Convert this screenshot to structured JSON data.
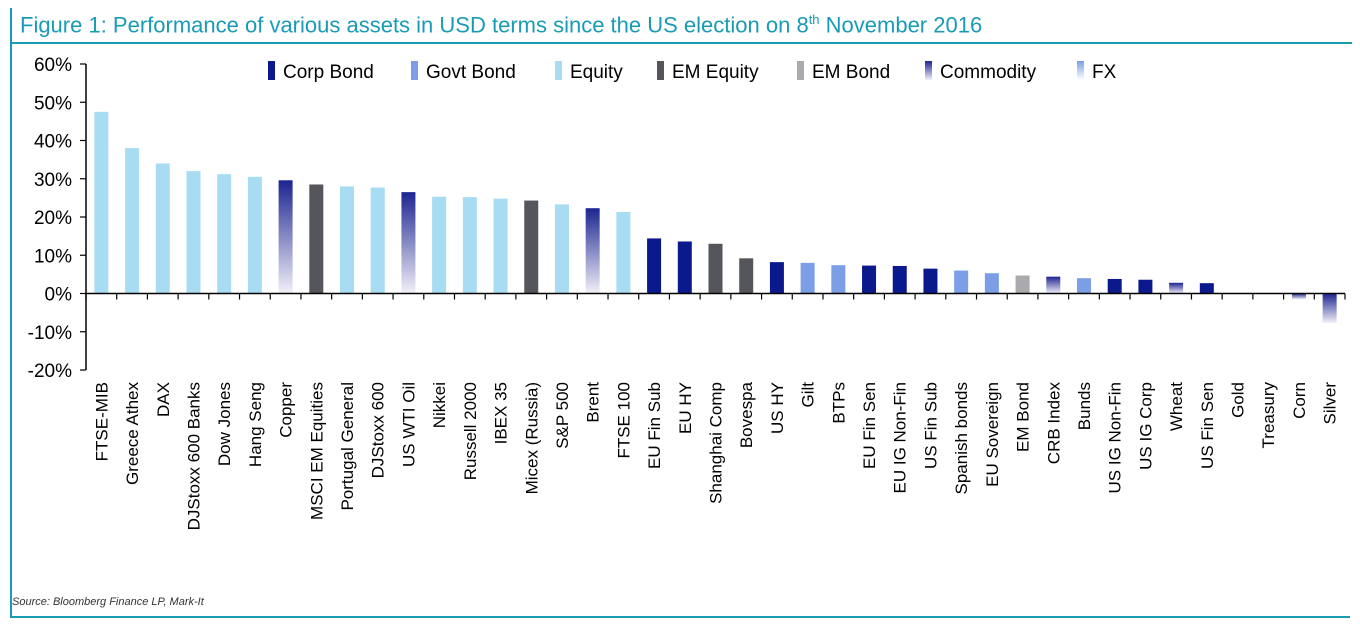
{
  "title": {
    "prefix": "Figure 1: Performance of various assets in USD terms since the US election on 8",
    "superscript": "th",
    "suffix": " November 2016"
  },
  "source": "Source: Bloomberg Finance LP, Mark-It",
  "colors": {
    "Corp Bond": "#0a1a8c",
    "Govt Bond": "#7b9ee6",
    "Equity": "#a7dcf3",
    "EM Equity": "#55565c",
    "EM Bond": "#a9aaae",
    "Commodity": "#1c2590",
    "FX": "#7b9ee6",
    "Commodity_light": "#f2f0f8",
    "FX_light": "#ffffff"
  },
  "chart_data": {
    "type": "bar",
    "title": "Performance of various assets in USD terms since the US election on 8th November 2016",
    "ylim": [
      -20,
      60
    ],
    "yticks": [
      -20,
      -10,
      0,
      10,
      20,
      30,
      40,
      50,
      60
    ],
    "ytick_labels": [
      "-20%",
      "-10%",
      "0%",
      "10%",
      "20%",
      "30%",
      "40%",
      "50%",
      "60%"
    ],
    "legend": [
      "Corp Bond",
      "Govt Bond",
      "Equity",
      "EM Equity",
      "EM Bond",
      "Commodity",
      "FX"
    ],
    "legend_position": "top",
    "categories": [
      "FTSE-MIB",
      "Greece Athex",
      "DAX",
      "DJStoxx 600 Banks",
      "Dow Jones",
      "Hang Seng",
      "Copper",
      "MSCI EM Equities",
      "Portugal General",
      "DJStoxx 600",
      "US WTI Oil",
      "Nikkei",
      "Russell 2000",
      "IBEX 35",
      "Micex (Russia)",
      "S&P 500",
      "Brent",
      "FTSE 100",
      "EU Fin Sub",
      "EU HY",
      "Shanghai Comp",
      "Bovespa",
      "US HY",
      "Gilt",
      "BTPs",
      "EU Fin Sen",
      "EU IG Non-Fin",
      "US Fin Sub",
      "Spanish bonds",
      "EU Sovereign",
      "EM Bond",
      "CRB Index",
      "Bunds",
      "US IG Non-Fin",
      "US IG Corp",
      "Wheat",
      "US Fin Sen",
      "Gold",
      "Treasury",
      "Corn",
      "Silver"
    ],
    "values": [
      47.5,
      38,
      34,
      32,
      31.2,
      30.5,
      29.6,
      28.5,
      28,
      27.7,
      26.5,
      25.3,
      25.2,
      24.8,
      24.3,
      23.3,
      22.3,
      21.3,
      14.4,
      13.6,
      13,
      9.2,
      8.2,
      8,
      7.4,
      7.3,
      7.2,
      6.5,
      6,
      5.3,
      4.7,
      4.4,
      4,
      3.8,
      3.6,
      2.8,
      2.7,
      0,
      0,
      -1.5,
      -7.7
    ],
    "asset_class": [
      "Equity",
      "Equity",
      "Equity",
      "Equity",
      "Equity",
      "Equity",
      "Commodity",
      "EM Equity",
      "Equity",
      "Equity",
      "Commodity",
      "Equity",
      "Equity",
      "Equity",
      "EM Equity",
      "Equity",
      "Commodity",
      "Equity",
      "Corp Bond",
      "Corp Bond",
      "EM Equity",
      "EM Equity",
      "Corp Bond",
      "Govt Bond",
      "Govt Bond",
      "Corp Bond",
      "Corp Bond",
      "Corp Bond",
      "Govt Bond",
      "Govt Bond",
      "EM Bond",
      "Commodity",
      "Govt Bond",
      "Corp Bond",
      "Corp Bond",
      "Commodity",
      "Corp Bond",
      "Commodity",
      "Govt Bond",
      "Commodity",
      "Commodity"
    ],
    "xlabel": "",
    "ylabel": "",
    "grid": false
  }
}
